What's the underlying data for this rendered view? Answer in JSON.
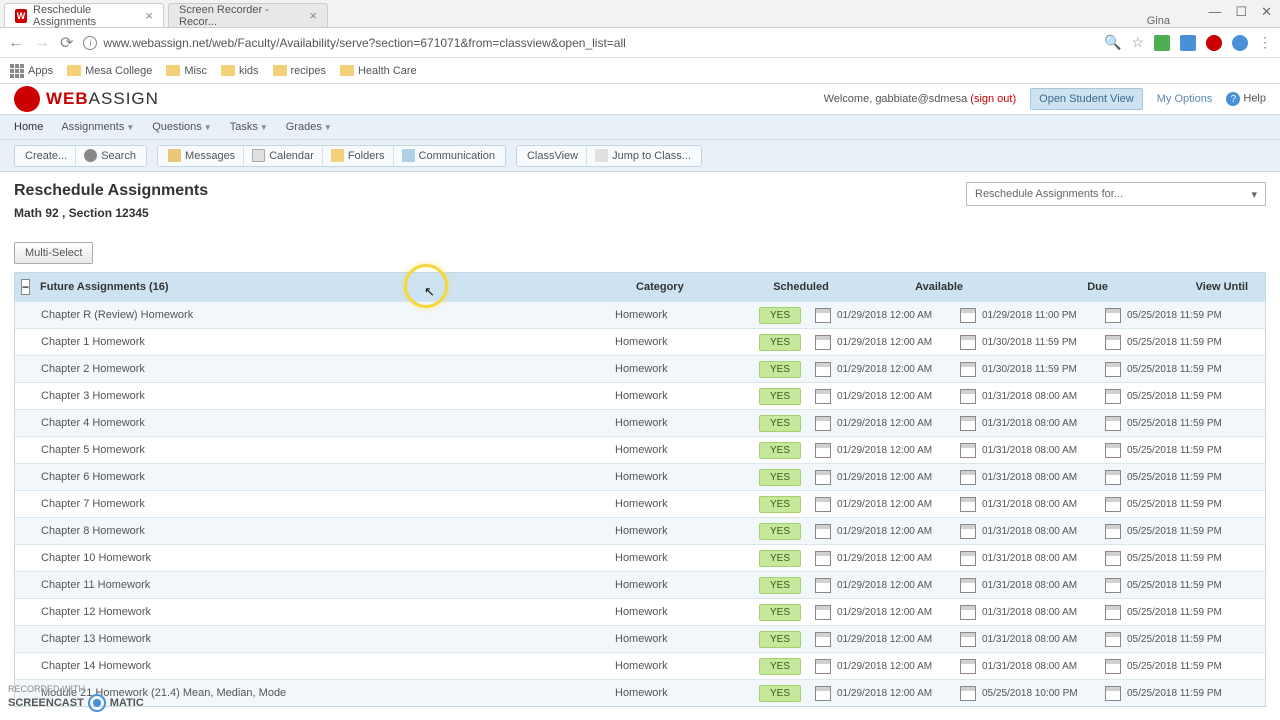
{
  "browser": {
    "tabs": [
      {
        "title": "Reschedule Assignments",
        "active": true
      },
      {
        "title": "Screen Recorder - Recor...",
        "active": false
      }
    ],
    "user": "Gina",
    "url": "www.webassign.net/web/Faculty/Availability/serve?section=671071&from=classview&open_list=all"
  },
  "bookmarks": {
    "apps": "Apps",
    "items": [
      "Mesa College",
      "Misc",
      "kids",
      "recipes",
      "Health Care"
    ]
  },
  "header": {
    "logo_text_1": "WEB",
    "logo_text_2": "ASSIGN",
    "welcome": "Welcome, gabbiate@sdmesa",
    "signout": "(sign out)",
    "open_student": "Open Student View",
    "my_options": "My Options",
    "help": "Help"
  },
  "nav": {
    "home": "Home",
    "assignments": "Assignments",
    "questions": "Questions",
    "tasks": "Tasks",
    "grades": "Grades"
  },
  "toolbar": {
    "create": "Create...",
    "search": "Search",
    "messages": "Messages",
    "calendar": "Calendar",
    "folders": "Folders",
    "communication": "Communication",
    "classview": "ClassView",
    "jump": "Jump to Class..."
  },
  "page": {
    "title": "Reschedule Assignments",
    "subtitle": "Math 92 , Section 12345",
    "dropdown": "Reschedule Assignments for...",
    "multi": "Multi-Select"
  },
  "table": {
    "header": {
      "name": "Future Assignments (16)",
      "category": "Category",
      "scheduled": "Scheduled",
      "available": "Available",
      "due": "Due",
      "view": "View Until"
    },
    "rows": [
      {
        "name": "Chapter R (Review) Homework",
        "cat": "Homework",
        "sched": "YES",
        "avail": "01/29/2018 12:00 AM",
        "due": "01/29/2018 11:00 PM",
        "view": "05/25/2018 11:59 PM"
      },
      {
        "name": "Chapter 1 Homework",
        "cat": "Homework",
        "sched": "YES",
        "avail": "01/29/2018 12:00 AM",
        "due": "01/30/2018 11:59 PM",
        "view": "05/25/2018 11:59 PM"
      },
      {
        "name": "Chapter 2 Homework",
        "cat": "Homework",
        "sched": "YES",
        "avail": "01/29/2018 12:00 AM",
        "due": "01/30/2018 11:59 PM",
        "view": "05/25/2018 11:59 PM"
      },
      {
        "name": "Chapter 3 Homework",
        "cat": "Homework",
        "sched": "YES",
        "avail": "01/29/2018 12:00 AM",
        "due": "01/31/2018 08:00 AM",
        "view": "05/25/2018 11:59 PM"
      },
      {
        "name": "Chapter 4 Homework",
        "cat": "Homework",
        "sched": "YES",
        "avail": "01/29/2018 12:00 AM",
        "due": "01/31/2018 08:00 AM",
        "view": "05/25/2018 11:59 PM"
      },
      {
        "name": "Chapter 5 Homework",
        "cat": "Homework",
        "sched": "YES",
        "avail": "01/29/2018 12:00 AM",
        "due": "01/31/2018 08:00 AM",
        "view": "05/25/2018 11:59 PM"
      },
      {
        "name": "Chapter 6 Homework",
        "cat": "Homework",
        "sched": "YES",
        "avail": "01/29/2018 12:00 AM",
        "due": "01/31/2018 08:00 AM",
        "view": "05/25/2018 11:59 PM"
      },
      {
        "name": "Chapter 7 Homework",
        "cat": "Homework",
        "sched": "YES",
        "avail": "01/29/2018 12:00 AM",
        "due": "01/31/2018 08:00 AM",
        "view": "05/25/2018 11:59 PM"
      },
      {
        "name": "Chapter 8 Homework",
        "cat": "Homework",
        "sched": "YES",
        "avail": "01/29/2018 12:00 AM",
        "due": "01/31/2018 08:00 AM",
        "view": "05/25/2018 11:59 PM"
      },
      {
        "name": "Chapter 10 Homework",
        "cat": "Homework",
        "sched": "YES",
        "avail": "01/29/2018 12:00 AM",
        "due": "01/31/2018 08:00 AM",
        "view": "05/25/2018 11:59 PM"
      },
      {
        "name": "Chapter 11 Homework",
        "cat": "Homework",
        "sched": "YES",
        "avail": "01/29/2018 12:00 AM",
        "due": "01/31/2018 08:00 AM",
        "view": "05/25/2018 11:59 PM"
      },
      {
        "name": "Chapter 12 Homework",
        "cat": "Homework",
        "sched": "YES",
        "avail": "01/29/2018 12:00 AM",
        "due": "01/31/2018 08:00 AM",
        "view": "05/25/2018 11:59 PM"
      },
      {
        "name": "Chapter 13 Homework",
        "cat": "Homework",
        "sched": "YES",
        "avail": "01/29/2018 12:00 AM",
        "due": "01/31/2018 08:00 AM",
        "view": "05/25/2018 11:59 PM"
      },
      {
        "name": "Chapter 14 Homework",
        "cat": "Homework",
        "sched": "YES",
        "avail": "01/29/2018 12:00 AM",
        "due": "01/31/2018 08:00 AM",
        "view": "05/25/2018 11:59 PM"
      },
      {
        "name": "Module 21 Homework (21.4) Mean, Median, Mode",
        "cat": "Homework",
        "sched": "YES",
        "avail": "01/29/2018 12:00 AM",
        "due": "05/25/2018 10:00 PM",
        "view": "05/25/2018 11:59 PM"
      }
    ]
  },
  "watermark": {
    "line1": "RECORDED WITH",
    "line2": "SCREENCAST",
    "line3": "MATIC"
  }
}
